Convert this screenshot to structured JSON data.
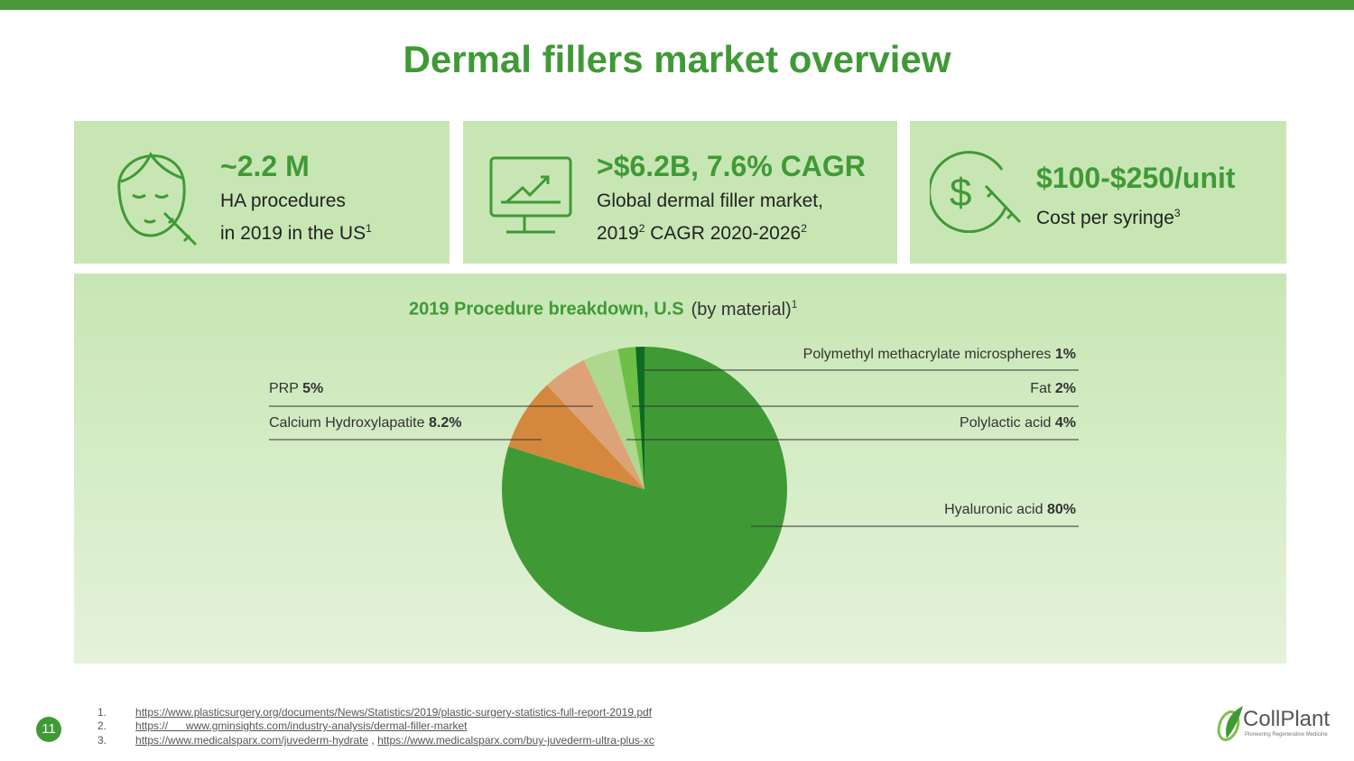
{
  "title": "Dermal fillers market overview",
  "cards": [
    {
      "icon": "face-injection-icon",
      "big": "~2.2 M",
      "line1": "HA procedures",
      "line2": "in 2019 in the US",
      "line2_sup": "1"
    },
    {
      "icon": "monitor-chart-icon",
      "big": ">$6.2B, 7.6% CAGR",
      "line1": "Global dermal filler market,",
      "line2a": "2019",
      "line2a_sup": "2",
      "line2b": " CAGR 2020-2026",
      "line2b_sup": "2"
    },
    {
      "icon": "dollar-syringe-icon",
      "big": "$100-$250/unit",
      "line1": "Cost per syringe",
      "line1_sup": "3"
    }
  ],
  "chart_data": {
    "type": "pie",
    "title": "2019 Procedure breakdown, U.S",
    "title_note": "(by material)",
    "title_sup": "1",
    "slices": [
      {
        "name": "Hyaluronic acid",
        "value": 80,
        "label": "80%",
        "color": "#3f9a36"
      },
      {
        "name": "Calcium Hydroxylapatite",
        "value": 8.2,
        "label": "8.2%",
        "color": "#d4883e"
      },
      {
        "name": "PRP",
        "value": 5,
        "label": "5%",
        "color": "#dda277"
      },
      {
        "name": "Polylactic acid",
        "value": 4,
        "label": "4%",
        "color": "#aed88f"
      },
      {
        "name": "Fat",
        "value": 2,
        "label": "2%",
        "color": "#6dbf45"
      },
      {
        "name": "Polymethyl methacrylate microspheres",
        "value": 1,
        "label": "1%",
        "color": "#0e6b24"
      }
    ]
  },
  "references": [
    {
      "num": "1.",
      "links": [
        "https://www.plasticsurgery.org/documents/News/Statistics/2019/plastic-surgery-statistics-full-report-2019.pdf"
      ]
    },
    {
      "num": "2.",
      "links": [
        "https://      www.gminsights.com/industry-analysis/dermal-filler-market"
      ]
    },
    {
      "num": "3.",
      "links": [
        "https://www.medicalsparx.com/juvederm-hydrate",
        "https://www.medicalsparx.com/buy-juvederm-ultra-plus-xc"
      ],
      "sep": " , "
    }
  ],
  "page_number": "11",
  "logo": {
    "name": "CollPlant",
    "tagline": "Pioneering Regenerative Medicine"
  }
}
